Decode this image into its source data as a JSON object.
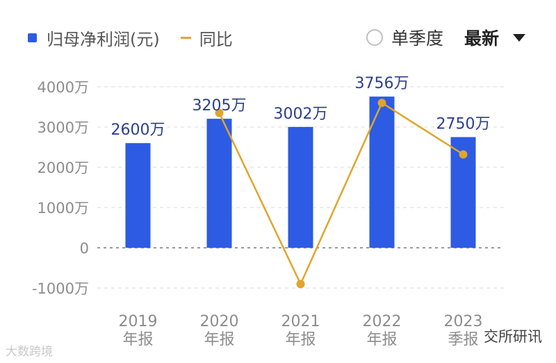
{
  "legend": {
    "bar_label": "归母净利润(元)",
    "line_label": "同比"
  },
  "controls": {
    "quarter_label": "单季度",
    "latest_label": "最新"
  },
  "watermarks": {
    "left": "大数跨境",
    "right": "交所研讯"
  },
  "colors": {
    "bar": "#2d5be3",
    "line": "#e0a52a",
    "label": "#2c3e8f",
    "grid": "#e6e6e6",
    "zero": "#9a9a9a",
    "tick": "#8c8c8c"
  },
  "chart_data": {
    "type": "bar",
    "categories": [
      [
        "2019",
        "年报"
      ],
      [
        "2020",
        "年报"
      ],
      [
        "2021",
        "年报"
      ],
      [
        "2022",
        "年报"
      ],
      [
        "2023",
        "季报"
      ]
    ],
    "series": [
      {
        "name": "归母净利润(元)",
        "type": "bar",
        "values": [
          2600,
          3205,
          3002,
          3756,
          2750
        ],
        "labels": [
          "2600万",
          "3205万",
          "3002万",
          "3756万",
          "2750万"
        ]
      },
      {
        "name": "同比",
        "type": "line",
        "values": [
          null,
          3350,
          -900,
          3600,
          2320
        ]
      }
    ],
    "ylim": [
      -1000,
      4000
    ],
    "yticks": [
      -1000,
      0,
      1000,
      2000,
      3000,
      4000
    ],
    "ytick_labels": [
      "-1000万",
      "0",
      "1000万",
      "2000万",
      "3000万",
      "4000万"
    ],
    "grid": true,
    "legend_position": "top-left"
  }
}
